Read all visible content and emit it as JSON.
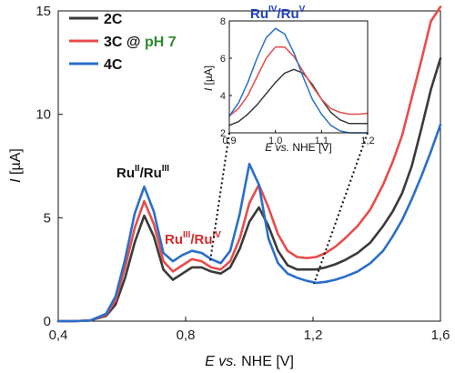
{
  "chart_data": [
    {
      "type": "line",
      "xlabel_parts": {
        "e": "E",
        "vs": "vs.",
        "rest": "NHE [V]"
      },
      "ylabel_parts": {
        "i": "I",
        "rest": "[µA]"
      },
      "xlim": [
        0.4,
        1.6
      ],
      "ylim": [
        0,
        15
      ],
      "x_ticks": [
        0.4,
        0.8,
        1.2,
        1.6
      ],
      "x_tick_labels": [
        "0,4",
        "0,8",
        "1,2",
        "1,6"
      ],
      "y_ticks": [
        0,
        5,
        10,
        15
      ],
      "y_tick_labels": [
        "0",
        "5",
        "10",
        "15"
      ],
      "grid": false,
      "legend_placement": "top-left",
      "legend": {
        "entries": [
          "2C",
          "3C",
          "4C"
        ],
        "suffix": "@",
        "ph_label": "pH 7"
      },
      "annotations": {
        "ru2_ru3": {
          "base1": "Ru",
          "sup1": "II",
          "slash": "/Ru",
          "sup2": "III"
        },
        "ru3_ru4": {
          "base1": "Ru",
          "sup1": "III",
          "slash": "/Ru",
          "sup2": "IV"
        },
        "ru4_ru5": {
          "base1": "Ru",
          "sup1": "IV",
          "slash": "/Ru",
          "sup2": "V"
        }
      },
      "series": [
        {
          "name": "2C",
          "color": "#3a3a3a",
          "x": [
            0.4,
            0.45,
            0.5,
            0.55,
            0.58,
            0.61,
            0.64,
            0.67,
            0.7,
            0.73,
            0.76,
            0.79,
            0.82,
            0.85,
            0.88,
            0.91,
            0.94,
            0.97,
            1.0,
            1.03,
            1.06,
            1.09,
            1.12,
            1.15,
            1.18,
            1.21,
            1.24,
            1.27,
            1.3,
            1.34,
            1.38,
            1.42,
            1.45,
            1.48,
            1.51,
            1.54,
            1.57,
            1.6
          ],
          "y": [
            0,
            0,
            0.03,
            0.25,
            0.8,
            2.1,
            3.8,
            5.1,
            4.1,
            2.5,
            2.0,
            2.3,
            2.6,
            2.6,
            2.4,
            2.3,
            2.6,
            3.5,
            4.8,
            5.5,
            4.6,
            3.4,
            2.7,
            2.5,
            2.5,
            2.5,
            2.6,
            2.75,
            2.95,
            3.3,
            3.8,
            4.6,
            5.3,
            6.2,
            7.5,
            9.3,
            11.2,
            12.7
          ]
        },
        {
          "name": "3C",
          "color": "#e84c4c",
          "x": [
            0.4,
            0.45,
            0.5,
            0.55,
            0.58,
            0.61,
            0.64,
            0.67,
            0.7,
            0.73,
            0.76,
            0.79,
            0.82,
            0.85,
            0.88,
            0.91,
            0.94,
            0.97,
            1.0,
            1.03,
            1.06,
            1.09,
            1.12,
            1.15,
            1.18,
            1.21,
            1.24,
            1.27,
            1.3,
            1.34,
            1.38,
            1.42,
            1.45,
            1.48,
            1.51,
            1.54,
            1.57,
            1.6
          ],
          "y": [
            0,
            0,
            0.03,
            0.3,
            1.0,
            2.6,
            4.5,
            5.8,
            4.7,
            2.9,
            2.4,
            2.7,
            3.0,
            2.9,
            2.6,
            2.5,
            2.9,
            4.0,
            5.7,
            6.6,
            5.5,
            4.2,
            3.4,
            3.1,
            3.05,
            3.1,
            3.3,
            3.6,
            4.0,
            4.6,
            5.4,
            6.6,
            7.7,
            9.0,
            10.8,
            12.6,
            14.5,
            15.2
          ]
        },
        {
          "name": "4C",
          "color": "#2a6fc9",
          "x": [
            0.4,
            0.45,
            0.5,
            0.55,
            0.58,
            0.61,
            0.64,
            0.67,
            0.7,
            0.73,
            0.76,
            0.79,
            0.82,
            0.85,
            0.88,
            0.91,
            0.94,
            0.97,
            1.0,
            1.03,
            1.06,
            1.09,
            1.12,
            1.15,
            1.18,
            1.21,
            1.24,
            1.27,
            1.3,
            1.34,
            1.38,
            1.42,
            1.45,
            1.48,
            1.51,
            1.54,
            1.57,
            1.6
          ],
          "y": [
            0,
            0,
            0.03,
            0.35,
            1.2,
            3.0,
            5.2,
            6.5,
            5.3,
            3.3,
            2.9,
            3.2,
            3.4,
            3.3,
            3.0,
            2.8,
            3.4,
            5.2,
            7.6,
            6.6,
            4.0,
            2.8,
            2.3,
            2.1,
            1.95,
            1.85,
            1.9,
            2.0,
            2.15,
            2.4,
            2.8,
            3.4,
            4.1,
            4.9,
            5.9,
            7.0,
            8.2,
            9.5
          ]
        }
      ]
    },
    {
      "type": "line",
      "role": "inset",
      "xlim": [
        0.9,
        1.2
      ],
      "ylim": [
        2,
        8
      ],
      "x_ticks": [
        0.9,
        1.0,
        1.1,
        1.2
      ],
      "x_tick_labels": [
        "0,9",
        "1,0",
        "1,1",
        "1,2"
      ],
      "y_ticks": [
        2,
        4,
        6,
        8
      ],
      "y_tick_labels": [
        "2",
        "4",
        "6",
        "8"
      ],
      "xlabel_parts": {
        "e": "E",
        "vs": "vs.",
        "rest": "NHE [V]"
      },
      "ylabel_parts": {
        "i": "I",
        "rest": "[µA]"
      },
      "series": [
        {
          "name": "2C",
          "color": "#3a3a3a",
          "x": [
            0.9,
            0.92,
            0.94,
            0.96,
            0.98,
            1.0,
            1.02,
            1.04,
            1.06,
            1.08,
            1.1,
            1.12,
            1.14,
            1.16,
            1.18,
            1.2
          ],
          "y": [
            2.4,
            2.6,
            3.0,
            3.5,
            4.1,
            4.7,
            5.2,
            5.4,
            5.2,
            4.6,
            3.8,
            3.1,
            2.7,
            2.5,
            2.5,
            2.5
          ]
        },
        {
          "name": "3C",
          "color": "#e84c4c",
          "x": [
            0.9,
            0.92,
            0.94,
            0.96,
            0.98,
            1.0,
            1.02,
            1.04,
            1.06,
            1.08,
            1.1,
            1.12,
            1.14,
            1.16,
            1.18,
            1.2
          ],
          "y": [
            2.9,
            3.3,
            4.0,
            5.0,
            6.0,
            6.6,
            6.6,
            6.1,
            5.3,
            4.5,
            3.8,
            3.3,
            3.1,
            3.0,
            3.0,
            3.05
          ]
        },
        {
          "name": "4C",
          "color": "#2a6fc9",
          "x": [
            0.9,
            0.92,
            0.94,
            0.96,
            0.98,
            1.0,
            1.02,
            1.04,
            1.06,
            1.08,
            1.1,
            1.12,
            1.14,
            1.16,
            1.18,
            1.2
          ],
          "y": [
            2.9,
            3.6,
            4.7,
            6.0,
            7.1,
            7.6,
            7.3,
            6.3,
            5.0,
            3.8,
            3.0,
            2.4,
            2.1,
            2.0,
            1.95,
            1.9
          ]
        }
      ]
    }
  ],
  "colors": {
    "ru2_ru3": "#111111",
    "ru3_ru4": "#d42a2a",
    "ru4_ru5": "#1f3fbf",
    "ph": "#2e8b2e"
  }
}
